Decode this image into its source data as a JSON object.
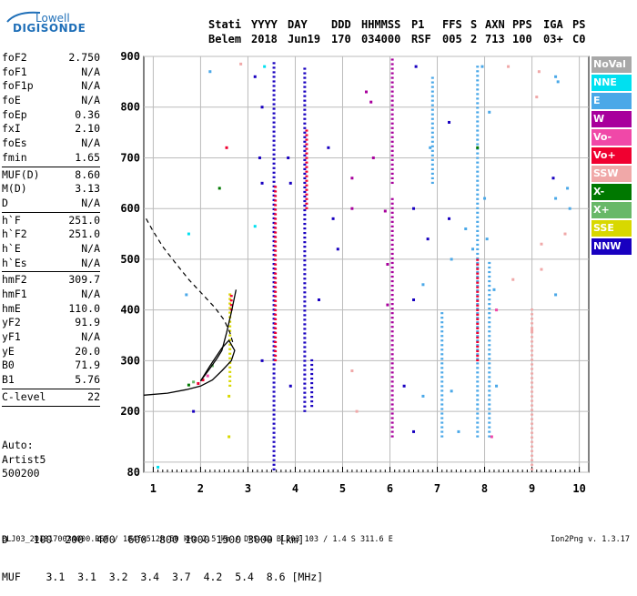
{
  "logo": {
    "line1": "Lowell",
    "line2": "DIGISONDE"
  },
  "header": {
    "labels": [
      "Stati",
      "YYYY",
      "DAY",
      "DDD",
      "HHMMSS",
      "P1",
      "FFS",
      "S",
      "AXN",
      "PPS",
      "IGA",
      "PS"
    ],
    "values": [
      "Belem",
      "2018",
      "Jun19",
      "170",
      "034000",
      "RSF",
      "005",
      "2",
      "713",
      "100",
      "03+",
      "C0"
    ]
  },
  "params": [
    {
      "name": "foF2",
      "value": "2.750"
    },
    {
      "name": "foF1",
      "value": "N/A"
    },
    {
      "name": "foF1p",
      "value": "N/A"
    },
    {
      "name": "foE",
      "value": "N/A"
    },
    {
      "name": "foEp",
      "value": "0.36"
    },
    {
      "name": "fxI",
      "value": "2.10"
    },
    {
      "name": "foEs",
      "value": "N/A"
    },
    {
      "name": "fmin",
      "value": "1.65"
    },
    {
      "sep": true
    },
    {
      "name": "MUF(D)",
      "value": "8.60"
    },
    {
      "name": "M(D)",
      "value": "3.13"
    },
    {
      "name": "D",
      "value": "N/A"
    },
    {
      "sep": true
    },
    {
      "name": "h`F",
      "value": "251.0"
    },
    {
      "name": "h`F2",
      "value": "251.0"
    },
    {
      "name": "h`E",
      "value": "N/A"
    },
    {
      "name": "h`Es",
      "value": "N/A"
    },
    {
      "sep": true
    },
    {
      "name": "hmF2",
      "value": "309.7"
    },
    {
      "name": "hmF1",
      "value": "N/A"
    },
    {
      "name": "hmE",
      "value": "110.0"
    },
    {
      "name": "yF2",
      "value": "91.9"
    },
    {
      "name": "yF1",
      "value": "N/A"
    },
    {
      "name": "yE",
      "value": "20.0"
    },
    {
      "name": "B0",
      "value": "71.9"
    },
    {
      "name": "B1",
      "value": "5.76"
    },
    {
      "sep": true
    },
    {
      "name": "C-level",
      "value": "22"
    },
    {
      "sep": true
    }
  ],
  "autoscale": [
    "Auto:",
    "Artist5",
    "500200"
  ],
  "dmuf": {
    "d_label": "D",
    "d_values": "100  200  400  600  800 1000 1500 3000 [km]",
    "muf_label": "MUF",
    "muf_values": "3.1  3.1  3.2  3.4  3.7  4.2  5.4  8.6 [MHz]"
  },
  "footer": {
    "left": "BLJ03_2018170034000.RSF / 184fx512h 50 kHz 2.5 km / DPS-4D BLJ03 103 / 1.4 S 311.6 E",
    "right": "Ion2Png v. 1.3.17"
  },
  "legend": [
    {
      "label": "NoVal",
      "color": "#a8a8a8"
    },
    {
      "label": "NNE",
      "color": "#00e0f0"
    },
    {
      "label": "E",
      "color": "#4aa8e8"
    },
    {
      "label": "W",
      "color": "#a8009c"
    },
    {
      "label": "Vo-",
      "color": "#f048a8"
    },
    {
      "label": "Vo+",
      "color": "#f00030"
    },
    {
      "label": "SSW",
      "color": "#f0a8a8"
    },
    {
      "label": "X-",
      "color": "#007800"
    },
    {
      "label": "X+",
      "color": "#68b868"
    },
    {
      "label": "SSE",
      "color": "#d8d800"
    },
    {
      "label": "NNW",
      "color": "#1800c0"
    }
  ],
  "chart_data": {
    "type": "scatter",
    "xlim": [
      0.8,
      10.2
    ],
    "ylim": [
      80,
      900
    ],
    "x_ticks": [
      1,
      2,
      3,
      4,
      5,
      6,
      7,
      8,
      9,
      10
    ],
    "y_ticks": [
      80,
      100,
      200,
      300,
      400,
      500,
      600,
      700,
      800,
      900
    ],
    "y_tick_labels": [
      "80",
      "200",
      "300",
      "400",
      "500",
      "600",
      "700",
      "800",
      "900"
    ],
    "grid": true,
    "traces": [
      {
        "x": 3.55,
        "y0": 85,
        "y1": 890,
        "color": "#1800c0"
      },
      {
        "x": 3.58,
        "y0": 300,
        "y1": 650,
        "color": "#f00030"
      },
      {
        "x": 4.2,
        "y0": 200,
        "y1": 880,
        "color": "#1800c0"
      },
      {
        "x": 4.24,
        "y0": 600,
        "y1": 760,
        "color": "#f00030"
      },
      {
        "x": 4.35,
        "y0": 210,
        "y1": 300,
        "color": "#1800c0"
      },
      {
        "x": 6.05,
        "y0": 650,
        "y1": 900,
        "color": "#a8009c"
      },
      {
        "x": 6.05,
        "y0": 150,
        "y1": 620,
        "color": "#a8009c"
      },
      {
        "x": 6.9,
        "y0": 650,
        "y1": 860,
        "color": "#4aa8e8"
      },
      {
        "x": 7.1,
        "y0": 150,
        "y1": 400,
        "color": "#4aa8e8"
      },
      {
        "x": 7.85,
        "y0": 150,
        "y1": 880,
        "color": "#4aa8e8"
      },
      {
        "x": 7.85,
        "y0": 300,
        "y1": 500,
        "color": "#f00030"
      },
      {
        "x": 8.1,
        "y0": 150,
        "y1": 500,
        "color": "#4aa8e8"
      },
      {
        "x": 9.0,
        "y0": 85,
        "y1": 400,
        "color": "#f0a8a8"
      },
      {
        "x": 2.62,
        "y0": 250,
        "y1": 430,
        "color": "#d8d800"
      },
      {
        "x": 2.65,
        "y0": 400,
        "y1": 430,
        "color": "#f00030"
      }
    ],
    "points": [
      {
        "x": 1.95,
        "y": 255,
        "color": "#f00030"
      },
      {
        "x": 2.05,
        "y": 262,
        "color": "#f00030"
      },
      {
        "x": 2.15,
        "y": 270,
        "color": "#f048a8"
      },
      {
        "x": 1.75,
        "y": 252,
        "color": "#007800"
      },
      {
        "x": 1.85,
        "y": 258,
        "color": "#68b868"
      },
      {
        "x": 2.25,
        "y": 290,
        "color": "#68b868"
      },
      {
        "x": 2.55,
        "y": 720,
        "color": "#f00030"
      },
      {
        "x": 2.4,
        "y": 640,
        "color": "#007800"
      },
      {
        "x": 2.6,
        "y": 150,
        "color": "#d8d800"
      },
      {
        "x": 2.6,
        "y": 230,
        "color": "#d8d800"
      },
      {
        "x": 1.7,
        "y": 430,
        "color": "#4aa8e8"
      },
      {
        "x": 1.75,
        "y": 550,
        "color": "#00e0f0"
      },
      {
        "x": 3.15,
        "y": 565,
        "color": "#00e0f0"
      },
      {
        "x": 3.35,
        "y": 880,
        "color": "#00e0f0"
      },
      {
        "x": 2.85,
        "y": 885,
        "color": "#f0a8a8"
      },
      {
        "x": 2.2,
        "y": 870,
        "color": "#4aa8e8"
      },
      {
        "x": 1.1,
        "y": 90,
        "color": "#00e0f0"
      },
      {
        "x": 1.85,
        "y": 200,
        "color": "#1800c0"
      },
      {
        "x": 3.15,
        "y": 860,
        "color": "#1800c0"
      },
      {
        "x": 3.3,
        "y": 800,
        "color": "#1800c0"
      },
      {
        "x": 3.25,
        "y": 700,
        "color": "#1800c0"
      },
      {
        "x": 3.3,
        "y": 650,
        "color": "#1800c0"
      },
      {
        "x": 3.85,
        "y": 700,
        "color": "#1800c0"
      },
      {
        "x": 3.9,
        "y": 650,
        "color": "#1800c0"
      },
      {
        "x": 3.9,
        "y": 250,
        "color": "#1800c0"
      },
      {
        "x": 3.3,
        "y": 300,
        "color": "#1800c0"
      },
      {
        "x": 4.8,
        "y": 580,
        "color": "#1800c0"
      },
      {
        "x": 4.9,
        "y": 520,
        "color": "#1800c0"
      },
      {
        "x": 4.7,
        "y": 720,
        "color": "#1800c0"
      },
      {
        "x": 4.5,
        "y": 420,
        "color": "#1800c0"
      },
      {
        "x": 5.5,
        "y": 830,
        "color": "#a8009c"
      },
      {
        "x": 5.6,
        "y": 810,
        "color": "#a8009c"
      },
      {
        "x": 5.2,
        "y": 660,
        "color": "#a8009c"
      },
      {
        "x": 5.65,
        "y": 700,
        "color": "#a8009c"
      },
      {
        "x": 5.2,
        "y": 600,
        "color": "#a8009c"
      },
      {
        "x": 5.9,
        "y": 595,
        "color": "#a8009c"
      },
      {
        "x": 5.95,
        "y": 490,
        "color": "#a8009c"
      },
      {
        "x": 6.5,
        "y": 600,
        "color": "#1800c0"
      },
      {
        "x": 6.5,
        "y": 420,
        "color": "#1800c0"
      },
      {
        "x": 6.8,
        "y": 540,
        "color": "#1800c0"
      },
      {
        "x": 6.3,
        "y": 250,
        "color": "#1800c0"
      },
      {
        "x": 6.5,
        "y": 160,
        "color": "#1800c0"
      },
      {
        "x": 6.55,
        "y": 880,
        "color": "#1800c0"
      },
      {
        "x": 5.2,
        "y": 280,
        "color": "#f0a8a8"
      },
      {
        "x": 5.3,
        "y": 200,
        "color": "#f0a8a8"
      },
      {
        "x": 5.95,
        "y": 410,
        "color": "#a8009c"
      },
      {
        "x": 6.7,
        "y": 230,
        "color": "#4aa8e8"
      },
      {
        "x": 6.7,
        "y": 450,
        "color": "#4aa8e8"
      },
      {
        "x": 7.3,
        "y": 240,
        "color": "#4aa8e8"
      },
      {
        "x": 7.45,
        "y": 160,
        "color": "#4aa8e8"
      },
      {
        "x": 6.85,
        "y": 720,
        "color": "#4aa8e8"
      },
      {
        "x": 7.3,
        "y": 500,
        "color": "#4aa8e8"
      },
      {
        "x": 7.6,
        "y": 560,
        "color": "#4aa8e8"
      },
      {
        "x": 7.75,
        "y": 520,
        "color": "#4aa8e8"
      },
      {
        "x": 8.25,
        "y": 250,
        "color": "#4aa8e8"
      },
      {
        "x": 8.2,
        "y": 440,
        "color": "#4aa8e8"
      },
      {
        "x": 8.0,
        "y": 620,
        "color": "#4aa8e8"
      },
      {
        "x": 8.05,
        "y": 540,
        "color": "#4aa8e8"
      },
      {
        "x": 7.25,
        "y": 770,
        "color": "#1800c0"
      },
      {
        "x": 7.25,
        "y": 580,
        "color": "#1800c0"
      },
      {
        "x": 7.85,
        "y": 720,
        "color": "#007800"
      },
      {
        "x": 7.95,
        "y": 880,
        "color": "#4aa8e8"
      },
      {
        "x": 8.1,
        "y": 790,
        "color": "#4aa8e8"
      },
      {
        "x": 8.15,
        "y": 150,
        "color": "#f048a8"
      },
      {
        "x": 8.25,
        "y": 400,
        "color": "#f048a8"
      },
      {
        "x": 8.6,
        "y": 460,
        "color": "#f0a8a8"
      },
      {
        "x": 9.15,
        "y": 870,
        "color": "#f0a8a8"
      },
      {
        "x": 9.1,
        "y": 820,
        "color": "#f0a8a8"
      },
      {
        "x": 9.5,
        "y": 860,
        "color": "#4aa8e8"
      },
      {
        "x": 9.55,
        "y": 850,
        "color": "#4aa8e8"
      },
      {
        "x": 9.75,
        "y": 640,
        "color": "#4aa8e8"
      },
      {
        "x": 9.8,
        "y": 600,
        "color": "#4aa8e8"
      },
      {
        "x": 9.45,
        "y": 660,
        "color": "#1800c0"
      },
      {
        "x": 9.5,
        "y": 620,
        "color": "#4aa8e8"
      },
      {
        "x": 9.5,
        "y": 430,
        "color": "#4aa8e8"
      },
      {
        "x": 9.2,
        "y": 530,
        "color": "#f0a8a8"
      },
      {
        "x": 9.2,
        "y": 480,
        "color": "#f0a8a8"
      },
      {
        "x": 9.7,
        "y": 550,
        "color": "#f0a8a8"
      },
      {
        "x": 8.5,
        "y": 880,
        "color": "#f0a8a8"
      },
      {
        "x": 9.0,
        "y": 360,
        "color": "#f0a8a8"
      }
    ],
    "profile_curve": [
      [
        0.8,
        232
      ],
      [
        1.3,
        236
      ],
      [
        1.7,
        243
      ],
      [
        2.0,
        250
      ],
      [
        2.25,
        262
      ],
      [
        2.45,
        280
      ],
      [
        2.65,
        300
      ],
      [
        2.72,
        320
      ],
      [
        2.6,
        340
      ],
      [
        2.45,
        325
      ],
      [
        2.2,
        290
      ],
      [
        2.0,
        260
      ]
    ],
    "profile_curve_upper": [
      [
        2.0,
        260
      ],
      [
        2.2,
        285
      ],
      [
        2.35,
        305
      ],
      [
        2.45,
        320
      ],
      [
        2.55,
        355
      ],
      [
        2.65,
        395
      ],
      [
        2.75,
        440
      ]
    ],
    "dashed_curve": [
      [
        0.85,
        580
      ],
      [
        1.0,
        555
      ],
      [
        1.2,
        525
      ],
      [
        1.45,
        495
      ],
      [
        1.75,
        460
      ],
      [
        2.05,
        430
      ],
      [
        2.3,
        405
      ],
      [
        2.5,
        380
      ],
      [
        2.62,
        355
      ],
      [
        2.7,
        330
      ]
    ]
  }
}
